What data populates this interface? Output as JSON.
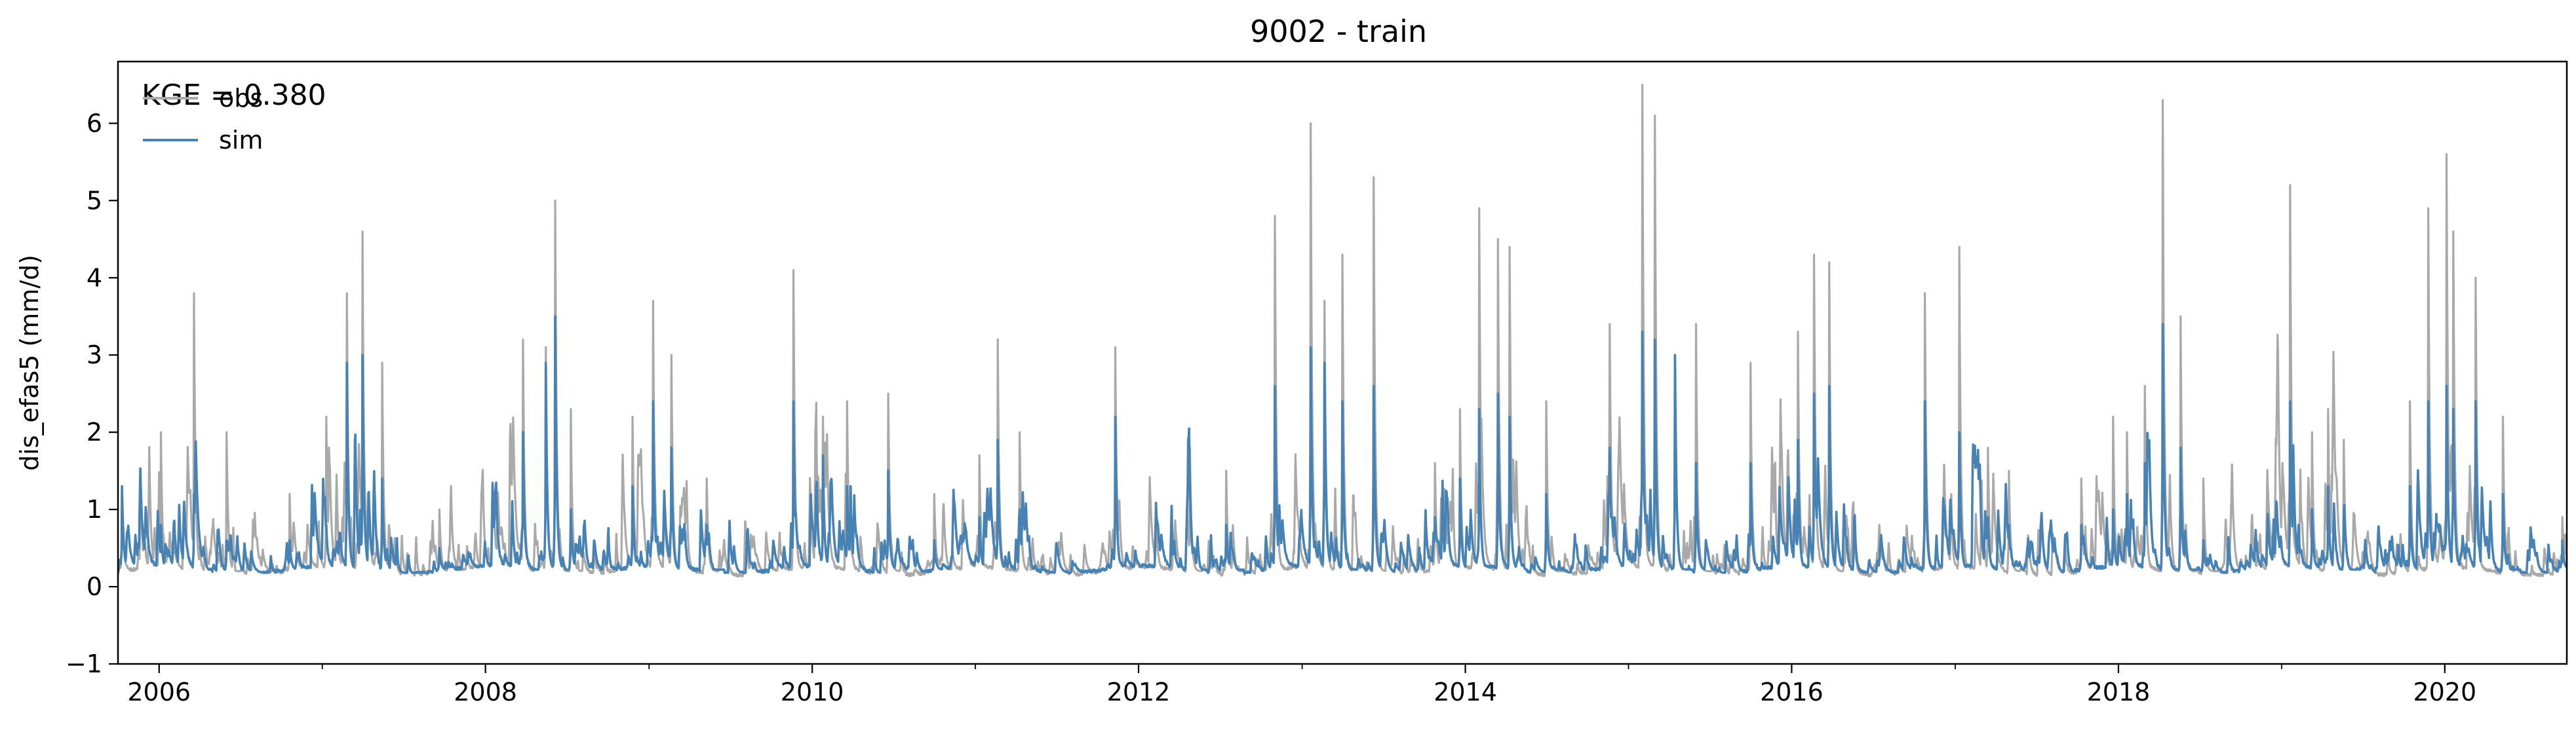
{
  "chart_data": {
    "type": "line",
    "title": "9002 - train",
    "xlabel": "",
    "ylabel": "dis_efas5 (mm/d)",
    "xlim": [
      "2005-10-01",
      "2020-09-30"
    ],
    "ylim": [
      -1,
      6.8
    ],
    "x_ticks": [
      "2006-01-01",
      "2008-01-01",
      "2010-01-01",
      "2012-01-01",
      "2014-01-01",
      "2016-01-01",
      "2018-01-01",
      "2020-01-01"
    ],
    "x_tick_labels": [
      "2006",
      "2008",
      "2010",
      "2012",
      "2014",
      "2016",
      "2018",
      "2020"
    ],
    "y_ticks": [
      -1,
      0,
      1,
      2,
      3,
      4,
      5,
      6
    ],
    "y_tick_labels": [
      "−1",
      "0",
      "1",
      "2",
      "3",
      "4",
      "5",
      "6"
    ],
    "annotation": "KGE = 0.380",
    "grid": false,
    "legend": {
      "position": "top-left",
      "entries": [
        "obs",
        "sim"
      ]
    },
    "series": [
      {
        "name": "obs",
        "color": "#a9a9a9",
        "baseline": 0.2,
        "peaks": [
          [
            "2005-10-10",
            1.3
          ],
          [
            "2006-01-05",
            2.0
          ],
          [
            "2006-03-20",
            3.8
          ],
          [
            "2006-06-01",
            2.0
          ],
          [
            "2006-10-20",
            1.2
          ],
          [
            "2007-01-10",
            2.2
          ],
          [
            "2007-02-25",
            3.8
          ],
          [
            "2007-04-01",
            4.6
          ],
          [
            "2007-05-15",
            2.9
          ],
          [
            "2007-09-20",
            1.0
          ],
          [
            "2008-03-25",
            3.2
          ],
          [
            "2008-05-15",
            3.1
          ],
          [
            "2008-06-05",
            5.0
          ],
          [
            "2008-07-10",
            2.3
          ],
          [
            "2008-11-25",
            2.2
          ],
          [
            "2009-01-10",
            3.7
          ],
          [
            "2009-02-20",
            3.0
          ],
          [
            "2009-05-10",
            1.4
          ],
          [
            "2009-11-20",
            4.1
          ],
          [
            "2010-01-25",
            2.2
          ],
          [
            "2010-03-20",
            2.4
          ],
          [
            "2010-06-20",
            2.5
          ],
          [
            "2010-10-01",
            1.2
          ],
          [
            "2011-01-10",
            1.7
          ],
          [
            "2011-02-20",
            3.2
          ],
          [
            "2011-04-10",
            2.0
          ],
          [
            "2011-11-10",
            3.1
          ],
          [
            "2012-04-25",
            1.8
          ],
          [
            "2012-07-15",
            1.5
          ],
          [
            "2012-11-01",
            4.8
          ],
          [
            "2013-01-20",
            6.0
          ],
          [
            "2013-02-20",
            3.7
          ],
          [
            "2013-04-01",
            4.3
          ],
          [
            "2013-06-10",
            5.3
          ],
          [
            "2013-10-25",
            1.6
          ],
          [
            "2013-12-20",
            2.3
          ],
          [
            "2014-02-01",
            4.9
          ],
          [
            "2014-03-15",
            4.5
          ],
          [
            "2014-04-10",
            4.4
          ],
          [
            "2014-07-01",
            2.4
          ],
          [
            "2014-11-20",
            3.4
          ],
          [
            "2015-02-01",
            6.5
          ],
          [
            "2015-03-01",
            6.1
          ],
          [
            "2015-04-15",
            3.0
          ],
          [
            "2015-06-01",
            3.4
          ],
          [
            "2015-10-01",
            2.9
          ],
          [
            "2016-01-15",
            3.3
          ],
          [
            "2016-02-20",
            4.3
          ],
          [
            "2016-03-25",
            4.2
          ],
          [
            "2016-10-25",
            3.8
          ],
          [
            "2017-01-10",
            4.4
          ],
          [
            "2017-03-15",
            1.8
          ],
          [
            "2017-05-01",
            1.5
          ],
          [
            "2017-10-10",
            1.4
          ],
          [
            "2017-12-20",
            2.2
          ],
          [
            "2018-01-20",
            2.0
          ],
          [
            "2018-03-01",
            2.6
          ],
          [
            "2018-04-10",
            6.3
          ],
          [
            "2018-05-20",
            3.5
          ],
          [
            "2018-07-10",
            1.4
          ],
          [
            "2019-01-20",
            5.2
          ],
          [
            "2019-03-10",
            2.0
          ],
          [
            "2019-04-15",
            2.3
          ],
          [
            "2019-05-20",
            1.9
          ],
          [
            "2019-10-15",
            2.4
          ],
          [
            "2019-11-25",
            4.9
          ],
          [
            "2020-01-05",
            5.6
          ],
          [
            "2020-01-20",
            4.6
          ],
          [
            "2020-03-10",
            4.0
          ],
          [
            "2020-05-10",
            2.2
          ],
          [
            "2020-09-20",
            0.9
          ]
        ],
        "minimum": 0.1
      },
      {
        "name": "sim",
        "color": "#4682b4",
        "baseline": 0.22,
        "peaks": [
          [
            "2005-10-10",
            1.3
          ],
          [
            "2006-01-05",
            0.8
          ],
          [
            "2006-03-20",
            1.2
          ],
          [
            "2006-06-01",
            0.6
          ],
          [
            "2006-10-20",
            0.6
          ],
          [
            "2007-01-10",
            0.8
          ],
          [
            "2007-02-25",
            2.9
          ],
          [
            "2007-04-01",
            3.0
          ],
          [
            "2007-05-15",
            1.4
          ],
          [
            "2007-09-20",
            0.5
          ],
          [
            "2008-03-25",
            2.0
          ],
          [
            "2008-05-15",
            2.9
          ],
          [
            "2008-06-05",
            3.5
          ],
          [
            "2008-07-10",
            1.0
          ],
          [
            "2008-11-25",
            1.3
          ],
          [
            "2009-01-10",
            2.4
          ],
          [
            "2009-02-20",
            1.8
          ],
          [
            "2009-05-10",
            0.8
          ],
          [
            "2009-11-20",
            2.4
          ],
          [
            "2010-01-25",
            1.7
          ],
          [
            "2010-03-20",
            1.3
          ],
          [
            "2010-06-20",
            1.5
          ],
          [
            "2010-10-01",
            0.6
          ],
          [
            "2011-01-10",
            0.9
          ],
          [
            "2011-02-20",
            1.9
          ],
          [
            "2011-04-10",
            1.0
          ],
          [
            "2011-11-10",
            2.2
          ],
          [
            "2012-04-25",
            1.2
          ],
          [
            "2012-07-15",
            0.8
          ],
          [
            "2012-11-01",
            2.6
          ],
          [
            "2013-01-20",
            3.1
          ],
          [
            "2013-02-20",
            2.9
          ],
          [
            "2013-04-01",
            2.4
          ],
          [
            "2013-06-10",
            2.6
          ],
          [
            "2013-10-25",
            0.9
          ],
          [
            "2013-12-20",
            1.4
          ],
          [
            "2014-02-01",
            2.3
          ],
          [
            "2014-03-15",
            2.5
          ],
          [
            "2014-04-10",
            2.2
          ],
          [
            "2014-07-01",
            1.2
          ],
          [
            "2014-11-20",
            1.8
          ],
          [
            "2015-02-01",
            3.3
          ],
          [
            "2015-03-01",
            3.2
          ],
          [
            "2015-04-15",
            3.0
          ],
          [
            "2015-06-01",
            1.6
          ],
          [
            "2015-10-01",
            1.6
          ],
          [
            "2016-01-15",
            1.9
          ],
          [
            "2016-02-20",
            2.5
          ],
          [
            "2016-03-25",
            2.6
          ],
          [
            "2016-10-25",
            2.4
          ],
          [
            "2017-01-10",
            2.0
          ],
          [
            "2017-03-15",
            0.9
          ],
          [
            "2017-05-01",
            0.8
          ],
          [
            "2017-10-10",
            0.8
          ],
          [
            "2017-12-20",
            1.0
          ],
          [
            "2018-01-20",
            1.2
          ],
          [
            "2018-03-01",
            1.6
          ],
          [
            "2018-04-10",
            3.4
          ],
          [
            "2018-05-20",
            1.8
          ],
          [
            "2018-07-10",
            0.6
          ],
          [
            "2019-01-20",
            2.4
          ],
          [
            "2019-03-10",
            1.0
          ],
          [
            "2019-04-15",
            1.3
          ],
          [
            "2019-05-20",
            0.9
          ],
          [
            "2019-10-15",
            1.3
          ],
          [
            "2019-11-25",
            2.4
          ],
          [
            "2020-01-05",
            2.6
          ],
          [
            "2020-01-20",
            2.3
          ],
          [
            "2020-03-10",
            2.4
          ],
          [
            "2020-05-10",
            1.2
          ],
          [
            "2020-09-20",
            0.6
          ]
        ],
        "minimum": 0.18
      }
    ]
  }
}
